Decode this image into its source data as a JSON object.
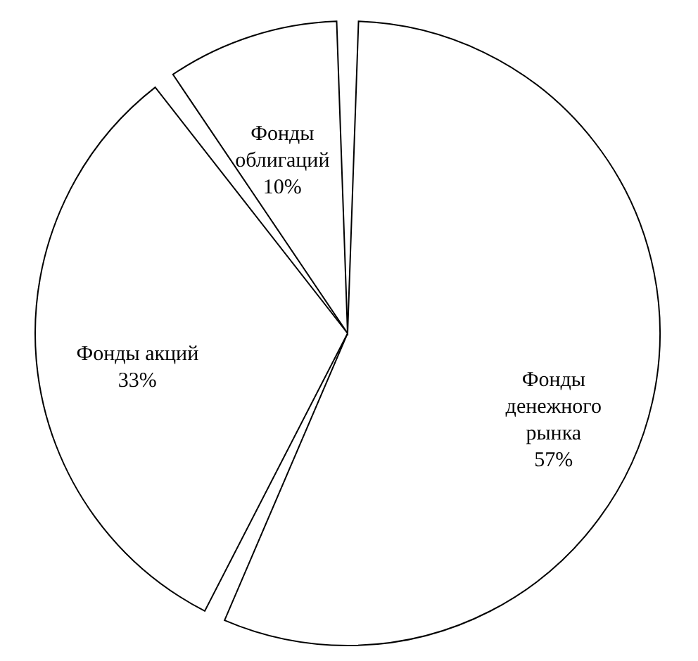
{
  "chart_data": {
    "type": "pie",
    "categories": [
      "Фонды денежного рынка",
      "Фонды акций",
      "Фонды облигаций"
    ],
    "values": [
      57,
      33,
      10
    ],
    "value_labels": [
      "57%",
      "33%",
      "10%"
    ],
    "colors": [
      "#ffffff",
      "#ffffff",
      "#ffffff"
    ],
    "legend": false
  }
}
